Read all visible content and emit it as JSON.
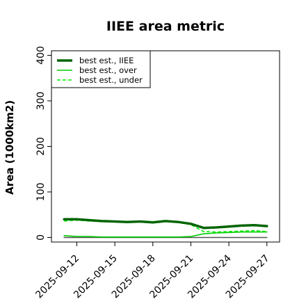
{
  "chart_data": {
    "type": "line",
    "title": "IIEE area metric",
    "xlabel": "",
    "ylabel": "Area (1000km2)",
    "ylim": [
      -10,
      410
    ],
    "y_ticks": [
      0,
      100,
      200,
      300,
      400
    ],
    "x_ticks": [
      "2025-09-12",
      "2025-09-15",
      "2025-09-18",
      "2025-09-21",
      "2025-09-24",
      "2025-09-27"
    ],
    "x": [
      "2025-09-11",
      "2025-09-12",
      "2025-09-13",
      "2025-09-14",
      "2025-09-15",
      "2025-09-16",
      "2025-09-17",
      "2025-09-18",
      "2025-09-19",
      "2025-09-20",
      "2025-09-21",
      "2025-09-22",
      "2025-09-23",
      "2025-09-24",
      "2025-09-25",
      "2025-09-26",
      "2025-09-27"
    ],
    "xlim": [
      "2025-09-10",
      "2025-09-28"
    ],
    "legend_position": "top-left",
    "grid": false,
    "series": [
      {
        "name": "best est., IIEE",
        "style": "solid",
        "weight": "thick",
        "color": "#006400",
        "values": [
          40,
          40,
          38,
          36,
          35,
          34,
          35,
          33,
          36,
          34,
          30,
          21,
          22,
          24,
          26,
          27,
          25
        ]
      },
      {
        "name": "best est., over",
        "style": "solid",
        "weight": "thin",
        "color": "#00cc00",
        "values": [
          4,
          2,
          2,
          1,
          1,
          1,
          1,
          1,
          1,
          1,
          2,
          8,
          10,
          11,
          12,
          12,
          12
        ]
      },
      {
        "name": "best est., under",
        "style": "dashed",
        "weight": "thin",
        "color": "#00ee00",
        "values": [
          36,
          38,
          36,
          35,
          34,
          33,
          34,
          32,
          35,
          33,
          28,
          13,
          12,
          13,
          14,
          15,
          13
        ]
      },
      {
        "name": "",
        "style": "solid",
        "weight": "thin",
        "color": "#555555",
        "values": [
          0,
          0,
          0,
          0,
          0,
          0,
          0,
          0,
          0,
          0,
          0,
          0,
          0,
          0,
          0,
          0,
          0
        ]
      }
    ]
  }
}
